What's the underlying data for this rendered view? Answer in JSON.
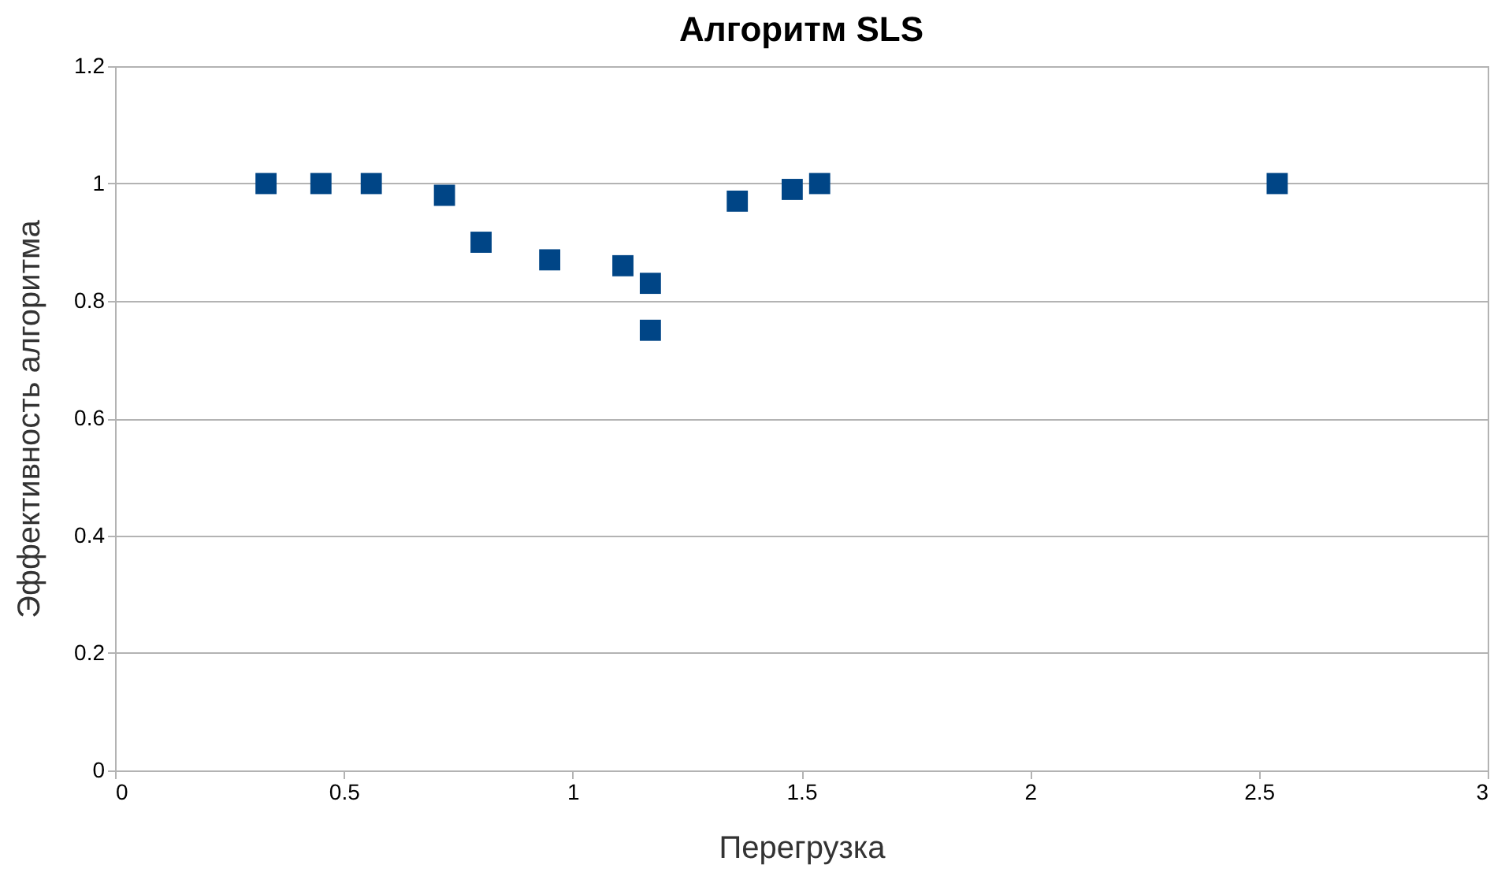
{
  "chart_data": {
    "type": "scatter",
    "title": "Алгоритм SLS",
    "xlabel": "Перегрузка",
    "ylabel": "Эффективность алгоритма",
    "series": [
      {
        "color": "#004586",
        "x": [
          0.33,
          0.45,
          0.56,
          0.72,
          0.8,
          0.95,
          1.11,
          1.17,
          1.17,
          1.36,
          1.48,
          1.54,
          2.54
        ],
        "values": [
          1.0,
          1.0,
          1.0,
          0.98,
          0.9,
          0.87,
          0.86,
          0.83,
          0.75,
          0.97,
          0.99,
          1.0,
          1.0
        ]
      }
    ],
    "xlim": [
      0,
      3
    ],
    "xticks": [
      0,
      0.5,
      1,
      1.5,
      2,
      2.5,
      3
    ],
    "ylim": [
      0,
      1.2
    ],
    "yticks": [
      0,
      0.2,
      0.4,
      0.6,
      0.8,
      1,
      1.2
    ],
    "grid": "y",
    "marker": "square"
  }
}
